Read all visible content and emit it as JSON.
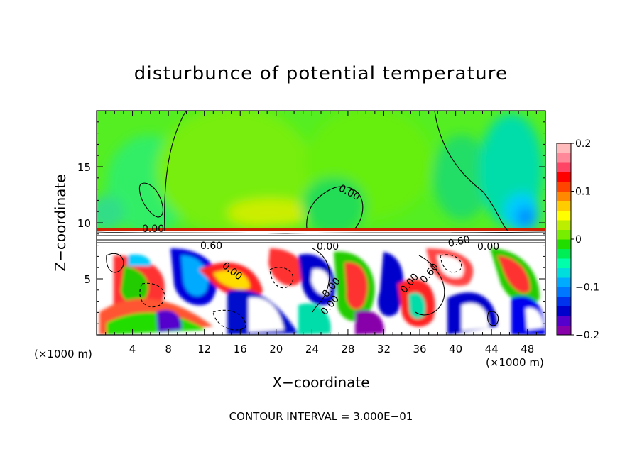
{
  "chart_data": {
    "type": "heatmap",
    "title": "disturbunce of potential temperature",
    "xlabel": "X−coordinate",
    "ylabel": "Z−coordinate",
    "x_unit_left": "(×1000 m)",
    "x_unit_right": "(×1000 m)",
    "xlim": [
      0,
      50
    ],
    "ylim": [
      0,
      20
    ],
    "x_ticks": [
      4,
      8,
      12,
      16,
      20,
      24,
      28,
      32,
      36,
      40,
      44,
      48
    ],
    "y_ticks": [
      5,
      10,
      15
    ],
    "colorbar": {
      "vmin": -0.2,
      "vmax": 0.2,
      "ticks": [
        {
          "value": 0.2,
          "label": "0.2"
        },
        {
          "value": 0.1,
          "label": "0.1"
        },
        {
          "value": 0,
          "label": "0"
        },
        {
          "value": -0.1,
          "label": "−0.1"
        },
        {
          "value": -0.2,
          "label": "−0.2"
        }
      ],
      "colors": [
        "#8800aa",
        "#5500cc",
        "#0000cc",
        "#0033ee",
        "#0077ff",
        "#00aaff",
        "#00dddd",
        "#00ffaa",
        "#00ee55",
        "#22dd00",
        "#77ee00",
        "#bbee00",
        "#ffff00",
        "#ffcc00",
        "#ff8800",
        "#ff4400",
        "#ff0000",
        "#ff4466",
        "#ff8899",
        "#ffbbbb"
      ]
    },
    "contour_labels": [
      "0.00",
      "0.00",
      "0.60",
      "0.00",
      "0.00",
      "0.60",
      "0.00",
      "0.00",
      "0.00",
      "0.00",
      "0.60"
    ],
    "contour_interval_text": "CONTOUR INTERVAL = 3.000E−01"
  }
}
